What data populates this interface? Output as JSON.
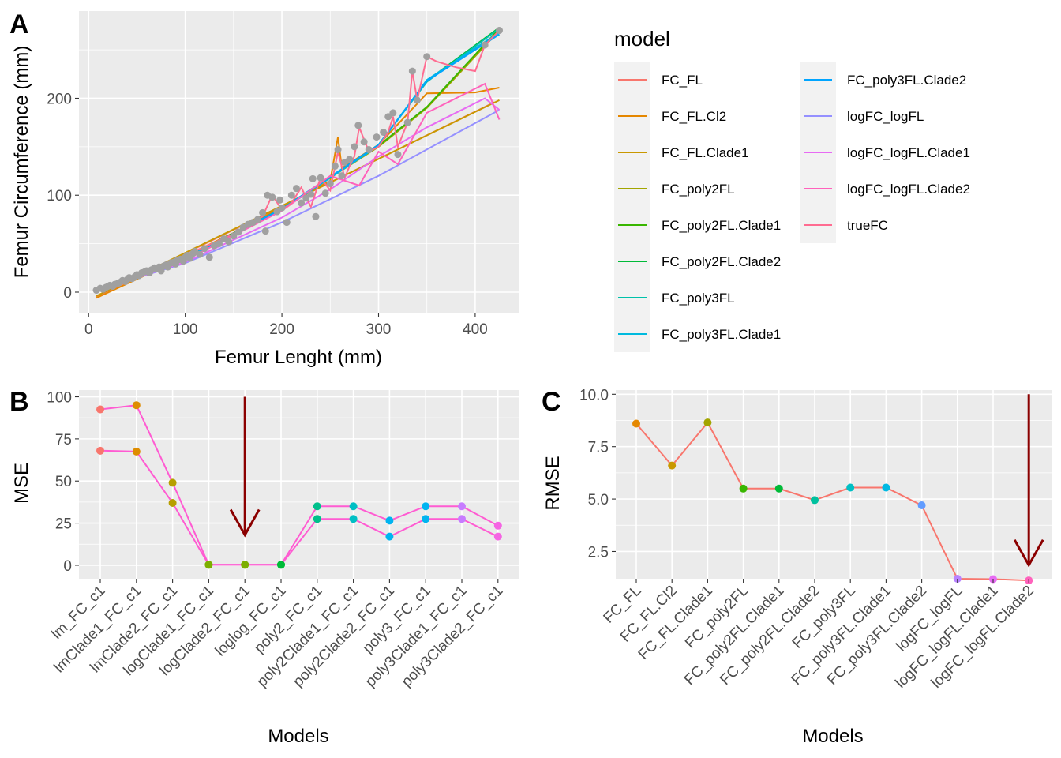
{
  "chart_data": [
    {
      "panel": "A",
      "type": "line",
      "xlabel": "Femur Lenght (mm)",
      "ylabel": "Femur Circumference (mm)",
      "xlim": [
        -10,
        445
      ],
      "ylim": [
        -22,
        290
      ],
      "xticks": [
        0,
        100,
        200,
        300,
        400
      ],
      "yticks": [
        0,
        100,
        200
      ],
      "grid": true,
      "legend_title": "model",
      "legend_position": "right",
      "legend_entries": [
        {
          "name": "FC_FL",
          "color": "#F8766D"
        },
        {
          "name": "FC_FL.Cl2",
          "color": "#E58700"
        },
        {
          "name": "FC_FL.Clade1",
          "color": "#C99800"
        },
        {
          "name": "FC_poly2FL",
          "color": "#A3A500"
        },
        {
          "name": "FC_poly2FL.Clade1",
          "color": "#39B600"
        },
        {
          "name": "FC_poly2FL.Clade2",
          "color": "#00BA38"
        },
        {
          "name": "FC_poly3FL",
          "color": "#00C1AA"
        },
        {
          "name": "FC_poly3FL.Clade1",
          "color": "#00BADE"
        },
        {
          "name": "FC_poly3FL.Clade2",
          "color": "#00A5FF"
        },
        {
          "name": "logFC_logFL",
          "color": "#9590FF"
        },
        {
          "name": "logFC_logFL.Clade1",
          "color": "#E76BF3"
        },
        {
          "name": "logFC_logFL.Clade2",
          "color": "#FF62BC"
        },
        {
          "name": "trueFC",
          "color": "#FF6C91"
        }
      ],
      "model_lines": [
        {
          "name": "FC_FL",
          "x": [
            8,
            420
          ],
          "y": [
            -5,
            196
          ]
        },
        {
          "name": "FC_FL.Cl2",
          "x": [
            8,
            60,
            110,
            160,
            200,
            250,
            258,
            262,
            300,
            350,
            400,
            425
          ],
          "y": [
            -6,
            18,
            42,
            66,
            88,
            115,
            160,
            128,
            152,
            205,
            206,
            211
          ]
        },
        {
          "name": "FC_FL.Clade1",
          "x": [
            8,
            425
          ],
          "y": [
            -4,
            198
          ]
        },
        {
          "name": "FC_poly2FL",
          "x": [
            8,
            100,
            200,
            300,
            350,
            425
          ],
          "y": [
            2,
            36,
            86,
            150,
            190,
            270
          ]
        },
        {
          "name": "FC_poly2FL.Clade1",
          "x": [
            8,
            100,
            200,
            300,
            350,
            425
          ],
          "y": [
            2,
            36,
            86,
            151,
            191,
            272
          ]
        },
        {
          "name": "FC_poly2FL.Clade2",
          "x": [
            8,
            100,
            200,
            300,
            350,
            425
          ],
          "y": [
            2,
            35,
            85,
            152,
            218,
            273
          ]
        },
        {
          "name": "FC_poly3FL",
          "x": [
            8,
            100,
            200,
            300,
            350,
            425
          ],
          "y": [
            2,
            35,
            86,
            152,
            217,
            272
          ]
        },
        {
          "name": "FC_poly3FL.Clade1",
          "x": [
            8,
            100,
            200,
            300,
            350,
            425
          ],
          "y": [
            2,
            35,
            85,
            151,
            219,
            268
          ]
        },
        {
          "name": "FC_poly3FL.Clade2",
          "x": [
            8,
            100,
            200,
            300,
            350,
            425
          ],
          "y": [
            2,
            35,
            86,
            152,
            218,
            266
          ]
        },
        {
          "name": "logFC_logFL",
          "x": [
            8,
            100,
            200,
            300,
            425
          ],
          "y": [
            2,
            30,
            72,
            120,
            188
          ]
        },
        {
          "name": "logFC_logFL.Clade1",
          "x": [
            8,
            100,
            200,
            250,
            300,
            350,
            410,
            425
          ],
          "y": [
            2,
            31,
            77,
            106,
            140,
            170,
            200,
            188
          ]
        },
        {
          "name": "logFC_logFL.Clade2",
          "x": [
            8,
            100,
            200,
            250,
            280,
            300,
            320,
            350,
            410,
            425
          ],
          "y": [
            2,
            33,
            84,
            120,
            110,
            145,
            132,
            185,
            215,
            178
          ]
        },
        {
          "name": "trueFC",
          "x": [
            8,
            50,
            100,
            150,
            180,
            190,
            200,
            210,
            220,
            230,
            240,
            250,
            258,
            265,
            270,
            275,
            280,
            290,
            300,
            310,
            315,
            320,
            330,
            335,
            340,
            350,
            360,
            380,
            400,
            410,
            425
          ],
          "y": [
            2,
            18,
            38,
            60,
            78,
            100,
            85,
            92,
            108,
            88,
            118,
            105,
            145,
            118,
            130,
            140,
            170,
            145,
            150,
            165,
            181,
            150,
            175,
            228,
            198,
            243,
            238,
            232,
            228,
            255,
            270
          ]
        }
      ],
      "points": [
        {
          "x": 8,
          "y": 2
        },
        {
          "x": 12,
          "y": 4
        },
        {
          "x": 15,
          "y": 3
        },
        {
          "x": 18,
          "y": 5
        },
        {
          "x": 20,
          "y": 6
        },
        {
          "x": 22,
          "y": 7
        },
        {
          "x": 25,
          "y": 6
        },
        {
          "x": 27,
          "y": 8
        },
        {
          "x": 30,
          "y": 9
        },
        {
          "x": 32,
          "y": 10
        },
        {
          "x": 35,
          "y": 12
        },
        {
          "x": 38,
          "y": 11
        },
        {
          "x": 40,
          "y": 13
        },
        {
          "x": 42,
          "y": 15
        },
        {
          "x": 45,
          "y": 14
        },
        {
          "x": 48,
          "y": 16
        },
        {
          "x": 50,
          "y": 18
        },
        {
          "x": 52,
          "y": 17
        },
        {
          "x": 55,
          "y": 20
        },
        {
          "x": 58,
          "y": 21
        },
        {
          "x": 60,
          "y": 22
        },
        {
          "x": 63,
          "y": 20
        },
        {
          "x": 65,
          "y": 23
        },
        {
          "x": 68,
          "y": 25
        },
        {
          "x": 70,
          "y": 24
        },
        {
          "x": 73,
          "y": 26
        },
        {
          "x": 75,
          "y": 22
        },
        {
          "x": 78,
          "y": 27
        },
        {
          "x": 80,
          "y": 28
        },
        {
          "x": 82,
          "y": 26
        },
        {
          "x": 85,
          "y": 30
        },
        {
          "x": 88,
          "y": 31
        },
        {
          "x": 90,
          "y": 29
        },
        {
          "x": 92,
          "y": 33
        },
        {
          "x": 95,
          "y": 34
        },
        {
          "x": 98,
          "y": 32
        },
        {
          "x": 100,
          "y": 36
        },
        {
          "x": 102,
          "y": 38
        },
        {
          "x": 105,
          "y": 35
        },
        {
          "x": 108,
          "y": 40
        },
        {
          "x": 110,
          "y": 42
        },
        {
          "x": 115,
          "y": 39
        },
        {
          "x": 120,
          "y": 45
        },
        {
          "x": 125,
          "y": 36
        },
        {
          "x": 130,
          "y": 48
        },
        {
          "x": 135,
          "y": 50
        },
        {
          "x": 140,
          "y": 55
        },
        {
          "x": 145,
          "y": 52
        },
        {
          "x": 150,
          "y": 58
        },
        {
          "x": 155,
          "y": 62
        },
        {
          "x": 160,
          "y": 67
        },
        {
          "x": 165,
          "y": 70
        },
        {
          "x": 170,
          "y": 72
        },
        {
          "x": 175,
          "y": 75
        },
        {
          "x": 180,
          "y": 82
        },
        {
          "x": 183,
          "y": 63
        },
        {
          "x": 185,
          "y": 100
        },
        {
          "x": 190,
          "y": 98
        },
        {
          "x": 195,
          "y": 83
        },
        {
          "x": 198,
          "y": 95
        },
        {
          "x": 200,
          "y": 87
        },
        {
          "x": 205,
          "y": 72
        },
        {
          "x": 210,
          "y": 100
        },
        {
          "x": 215,
          "y": 107
        },
        {
          "x": 220,
          "y": 92
        },
        {
          "x": 225,
          "y": 97
        },
        {
          "x": 230,
          "y": 101
        },
        {
          "x": 232,
          "y": 117
        },
        {
          "x": 235,
          "y": 78
        },
        {
          "x": 240,
          "y": 118
        },
        {
          "x": 245,
          "y": 102
        },
        {
          "x": 250,
          "y": 112
        },
        {
          "x": 255,
          "y": 130
        },
        {
          "x": 258,
          "y": 147
        },
        {
          "x": 262,
          "y": 120
        },
        {
          "x": 265,
          "y": 134
        },
        {
          "x": 270,
          "y": 137
        },
        {
          "x": 275,
          "y": 150
        },
        {
          "x": 279,
          "y": 172
        },
        {
          "x": 285,
          "y": 155
        },
        {
          "x": 290,
          "y": 147
        },
        {
          "x": 298,
          "y": 160
        },
        {
          "x": 305,
          "y": 165
        },
        {
          "x": 310,
          "y": 181
        },
        {
          "x": 315,
          "y": 185
        },
        {
          "x": 320,
          "y": 142
        },
        {
          "x": 330,
          "y": 175
        },
        {
          "x": 335,
          "y": 228
        },
        {
          "x": 340,
          "y": 198
        },
        {
          "x": 350,
          "y": 243
        },
        {
          "x": 410,
          "y": 255
        },
        {
          "x": 425,
          "y": 270
        }
      ]
    },
    {
      "panel": "B",
      "type": "line",
      "xlabel": "Models",
      "ylabel": "MSE",
      "ylim": [
        -8,
        104
      ],
      "yticks": [
        0,
        25,
        50,
        75,
        100
      ],
      "grid": true,
      "categories": [
        "lm_FC_c1",
        "lmClade1_FC_c1",
        "lmClade2_FC_c1",
        "logClade1_FC_c1",
        "logClade2_FC_c1",
        "loglog_FC_c1",
        "poly2_FC_c1",
        "poly2Clade1_FC_c1",
        "poly2Clade2_FC_c1",
        "poly3_FC_c1",
        "poly3Clade1_FC_c1",
        "poly3Clade2_FC_c1"
      ],
      "line_color": "#FF5BD2",
      "series": [
        {
          "values": [
            92.5,
            95,
            49,
            0.3,
            0.3,
            0.3,
            35,
            35,
            26.5,
            35,
            35,
            23.5
          ]
        },
        {
          "values": [
            68,
            67.5,
            37,
            0.3,
            0.3,
            0.3,
            27.5,
            27.5,
            17,
            27.5,
            27.5,
            17
          ]
        }
      ],
      "point_colors": [
        "#F8766D",
        "#DE8C00",
        "#B79F00",
        "#7CAE00",
        "#7CAE00",
        "#00BA38",
        "#00C08B",
        "#00BFC4",
        "#00B4F0",
        "#00B4F0",
        "#C77CFF",
        "#F564E3"
      ],
      "annotation": {
        "type": "arrow",
        "at_category": "logClade2_FC_c1",
        "y_from": 100,
        "y_to": 18,
        "color": "#8B0000"
      }
    },
    {
      "panel": "C",
      "type": "line",
      "xlabel": "Models",
      "ylabel": "RMSE",
      "ylim": [
        1.2,
        10.2
      ],
      "yticks": [
        2.5,
        5.0,
        7.5,
        10.0
      ],
      "grid": true,
      "categories": [
        "FC_FL",
        "FC_FL.Cl2",
        "FC_FL.Clade1",
        "FC_poly2FL",
        "FC_poly2FL.Clade1",
        "FC_poly2FL.Clade2",
        "FC_poly3FL",
        "FC_poly3FL.Clade1",
        "FC_poly3FL.Clade2",
        "logFC_logFL",
        "logFC_logFL.Clade1",
        "logFC_logFL.Clade2"
      ],
      "line_color": "#F8766D",
      "values": [
        8.6,
        6.6,
        8.65,
        5.5,
        5.5,
        4.95,
        5.55,
        5.55,
        4.7,
        1.2,
        1.18,
        1.12
      ],
      "point_colors": [
        "#E58700",
        "#C99800",
        "#A3A500",
        "#39B600",
        "#00BA38",
        "#00C19F",
        "#00BFC4",
        "#00B9E3",
        "#619CFF",
        "#B983FF",
        "#E76BF3",
        "#FF62BC"
      ],
      "annotation": {
        "type": "arrow",
        "at_category": "logFC_logFL.Clade2",
        "y_from": 10.0,
        "y_to": 1.85,
        "color": "#8B0000"
      }
    }
  ]
}
